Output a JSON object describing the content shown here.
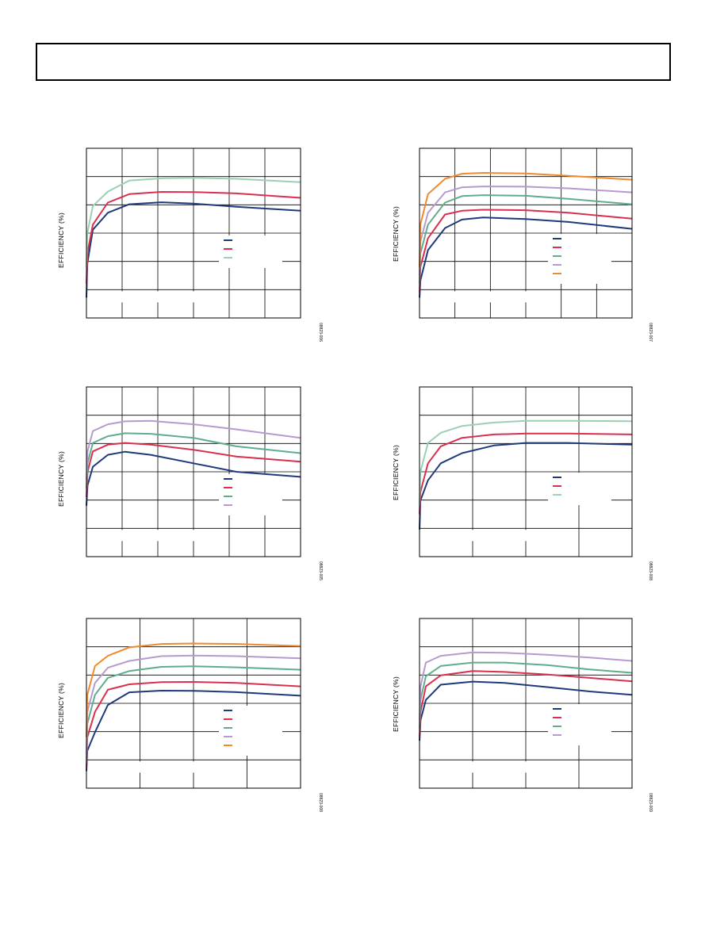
{
  "header": {
    "text": ""
  },
  "chart_data": [
    {
      "type": "line",
      "ylabel": "EFFICIENCY (%)",
      "figure_id": "08823-006",
      "x_divisions": 6,
      "y_divisions": 6,
      "series": [
        {
          "color": "#1f3a7a",
          "points": [
            [
              0,
              0.12
            ],
            [
              0.004,
              0.32
            ],
            [
              0.03,
              0.52
            ],
            [
              0.1,
              0.62
            ],
            [
              0.2,
              0.67
            ],
            [
              0.35,
              0.682
            ],
            [
              0.5,
              0.674
            ],
            [
              0.7,
              0.655
            ],
            [
              1,
              0.632
            ]
          ]
        },
        {
          "color": "#d9304e",
          "points": [
            [
              0,
              0.2
            ],
            [
              0.004,
              0.38
            ],
            [
              0.03,
              0.55
            ],
            [
              0.1,
              0.68
            ],
            [
              0.2,
              0.73
            ],
            [
              0.35,
              0.743
            ],
            [
              0.5,
              0.742
            ],
            [
              0.7,
              0.734
            ],
            [
              1,
              0.708
            ]
          ]
        },
        {
          "color": "#9bd0b4",
          "points": [
            [
              0,
              0.3
            ],
            [
              0.004,
              0.5
            ],
            [
              0.03,
              0.66
            ],
            [
              0.1,
              0.745
            ],
            [
              0.2,
              0.81
            ],
            [
              0.35,
              0.823
            ],
            [
              0.5,
              0.826
            ],
            [
              0.7,
              0.82
            ],
            [
              1,
              0.8
            ]
          ]
        }
      ]
    },
    {
      "type": "line",
      "ylabel": "EFFICIENCY (%)",
      "figure_id": "08823-007",
      "x_divisions": 6,
      "y_divisions": 6,
      "series": [
        {
          "color": "#1f3a7a",
          "points": [
            [
              0,
              0.12
            ],
            [
              0.004,
              0.22
            ],
            [
              0.04,
              0.4
            ],
            [
              0.12,
              0.53
            ],
            [
              0.2,
              0.58
            ],
            [
              0.3,
              0.592
            ],
            [
              0.5,
              0.583
            ],
            [
              0.7,
              0.566
            ],
            [
              1,
              0.525
            ]
          ]
        },
        {
          "color": "#d9304e",
          "points": [
            [
              0,
              0.15
            ],
            [
              0.004,
              0.3
            ],
            [
              0.04,
              0.47
            ],
            [
              0.12,
              0.61
            ],
            [
              0.2,
              0.632
            ],
            [
              0.3,
              0.638
            ],
            [
              0.5,
              0.635
            ],
            [
              0.7,
              0.62
            ],
            [
              1,
              0.585
            ]
          ]
        },
        {
          "color": "#5fad8a",
          "points": [
            [
              0,
              0.2
            ],
            [
              0.004,
              0.38
            ],
            [
              0.04,
              0.55
            ],
            [
              0.12,
              0.68
            ],
            [
              0.2,
              0.718
            ],
            [
              0.3,
              0.724
            ],
            [
              0.5,
              0.72
            ],
            [
              0.7,
              0.702
            ],
            [
              1,
              0.67
            ]
          ]
        },
        {
          "color": "#b79ad0",
          "points": [
            [
              0,
              0.25
            ],
            [
              0.004,
              0.45
            ],
            [
              0.04,
              0.62
            ],
            [
              0.12,
              0.74
            ],
            [
              0.2,
              0.77
            ],
            [
              0.3,
              0.775
            ],
            [
              0.5,
              0.774
            ],
            [
              0.7,
              0.764
            ],
            [
              1,
              0.74
            ]
          ]
        },
        {
          "color": "#f08a2c",
          "points": [
            [
              0,
              0.3
            ],
            [
              0.004,
              0.55
            ],
            [
              0.04,
              0.73
            ],
            [
              0.12,
              0.82
            ],
            [
              0.2,
              0.85
            ],
            [
              0.3,
              0.855
            ],
            [
              0.5,
              0.852
            ],
            [
              0.7,
              0.838
            ],
            [
              1,
              0.815
            ]
          ]
        }
      ]
    },
    {
      "type": "line",
      "ylabel": "EFFICIENCY (%)",
      "figure_id": "08823-005",
      "x_divisions": 6,
      "y_divisions": 6,
      "series": [
        {
          "color": "#1f3a7a",
          "points": [
            [
              0,
              0.3
            ],
            [
              0.005,
              0.42
            ],
            [
              0.03,
              0.53
            ],
            [
              0.1,
              0.6
            ],
            [
              0.18,
              0.618
            ],
            [
              0.3,
              0.6
            ],
            [
              0.5,
              0.55
            ],
            [
              0.7,
              0.5
            ],
            [
              1,
              0.47
            ]
          ]
        },
        {
          "color": "#d9304e",
          "points": [
            [
              0,
              0.35
            ],
            [
              0.005,
              0.5
            ],
            [
              0.03,
              0.62
            ],
            [
              0.1,
              0.66
            ],
            [
              0.18,
              0.67
            ],
            [
              0.3,
              0.66
            ],
            [
              0.5,
              0.63
            ],
            [
              0.7,
              0.59
            ],
            [
              1,
              0.56
            ]
          ]
        },
        {
          "color": "#5fad8a",
          "points": [
            [
              0,
              0.4
            ],
            [
              0.005,
              0.55
            ],
            [
              0.03,
              0.67
            ],
            [
              0.1,
              0.71
            ],
            [
              0.18,
              0.727
            ],
            [
              0.3,
              0.724
            ],
            [
              0.5,
              0.7
            ],
            [
              0.7,
              0.65
            ],
            [
              1,
              0.61
            ]
          ]
        },
        {
          "color": "#b79ad0",
          "points": [
            [
              0,
              0.45
            ],
            [
              0.005,
              0.62
            ],
            [
              0.03,
              0.74
            ],
            [
              0.1,
              0.78
            ],
            [
              0.18,
              0.797
            ],
            [
              0.3,
              0.8
            ],
            [
              0.5,
              0.78
            ],
            [
              0.7,
              0.75
            ],
            [
              1,
              0.7
            ]
          ]
        }
      ]
    },
    {
      "type": "line",
      "ylabel": "EFFICIENCY (%)",
      "figure_id": "08823-008",
      "x_divisions": 4,
      "y_divisions": 6,
      "series": [
        {
          "color": "#1f3a7a",
          "points": [
            [
              0,
              0.16
            ],
            [
              0.004,
              0.33
            ],
            [
              0.04,
              0.45
            ],
            [
              0.1,
              0.55
            ],
            [
              0.2,
              0.61
            ],
            [
              0.35,
              0.655
            ],
            [
              0.5,
              0.67
            ],
            [
              0.7,
              0.67
            ],
            [
              1,
              0.66
            ]
          ]
        },
        {
          "color": "#d9304e",
          "points": [
            [
              0,
              0.25
            ],
            [
              0.004,
              0.38
            ],
            [
              0.04,
              0.55
            ],
            [
              0.1,
              0.65
            ],
            [
              0.2,
              0.7
            ],
            [
              0.35,
              0.72
            ],
            [
              0.5,
              0.725
            ],
            [
              0.7,
              0.725
            ],
            [
              1,
              0.72
            ]
          ]
        },
        {
          "color": "#9bd0b4",
          "points": [
            [
              0,
              0.3
            ],
            [
              0.004,
              0.5
            ],
            [
              0.04,
              0.67
            ],
            [
              0.1,
              0.73
            ],
            [
              0.2,
              0.77
            ],
            [
              0.35,
              0.79
            ],
            [
              0.5,
              0.8
            ],
            [
              0.7,
              0.8
            ],
            [
              1,
              0.798
            ]
          ]
        }
      ]
    },
    {
      "type": "line",
      "ylabel": "EFFICIENCY (%)",
      "figure_id": "08823-008",
      "x_divisions": 4,
      "y_divisions": 6,
      "series": [
        {
          "color": "#1f3a7a",
          "points": [
            [
              0,
              0.1
            ],
            [
              0.004,
              0.22
            ],
            [
              0.04,
              0.33
            ],
            [
              0.1,
              0.49
            ],
            [
              0.2,
              0.565
            ],
            [
              0.35,
              0.575
            ],
            [
              0.5,
              0.574
            ],
            [
              0.7,
              0.566
            ],
            [
              1,
              0.545
            ]
          ]
        },
        {
          "color": "#d9304e",
          "points": [
            [
              0,
              0.12
            ],
            [
              0.004,
              0.3
            ],
            [
              0.04,
              0.45
            ],
            [
              0.1,
              0.58
            ],
            [
              0.2,
              0.612
            ],
            [
              0.35,
              0.625
            ],
            [
              0.5,
              0.626
            ],
            [
              0.7,
              0.62
            ],
            [
              1,
              0.6
            ]
          ]
        },
        {
          "color": "#5fad8a",
          "points": [
            [
              0,
              0.15
            ],
            [
              0.004,
              0.38
            ],
            [
              0.04,
              0.55
            ],
            [
              0.1,
              0.65
            ],
            [
              0.2,
              0.69
            ],
            [
              0.35,
              0.715
            ],
            [
              0.5,
              0.718
            ],
            [
              0.7,
              0.712
            ],
            [
              1,
              0.698
            ]
          ]
        },
        {
          "color": "#b79ad0",
          "points": [
            [
              0,
              0.2
            ],
            [
              0.004,
              0.45
            ],
            [
              0.04,
              0.62
            ],
            [
              0.1,
              0.71
            ],
            [
              0.2,
              0.75
            ],
            [
              0.35,
              0.778
            ],
            [
              0.5,
              0.782
            ],
            [
              0.7,
              0.778
            ],
            [
              1,
              0.765
            ]
          ]
        },
        {
          "color": "#f08a2c",
          "points": [
            [
              0,
              0.3
            ],
            [
              0.004,
              0.55
            ],
            [
              0.04,
              0.72
            ],
            [
              0.1,
              0.78
            ],
            [
              0.2,
              0.83
            ],
            [
              0.35,
              0.85
            ],
            [
              0.5,
              0.853
            ],
            [
              0.7,
              0.85
            ],
            [
              1,
              0.838
            ]
          ]
        }
      ]
    },
    {
      "type": "line",
      "ylabel": "EFFICIENCY (%)",
      "figure_id": "08823-009",
      "x_divisions": 4,
      "y_divisions": 6,
      "series": [
        {
          "color": "#1f3a7a",
          "points": [
            [
              0,
              0.28
            ],
            [
              0.005,
              0.4
            ],
            [
              0.03,
              0.52
            ],
            [
              0.1,
              0.61
            ],
            [
              0.25,
              0.628
            ],
            [
              0.4,
              0.62
            ],
            [
              0.6,
              0.596
            ],
            [
              0.8,
              0.57
            ],
            [
              1,
              0.55
            ]
          ]
        },
        {
          "color": "#d9304e",
          "points": [
            [
              0,
              0.3
            ],
            [
              0.005,
              0.45
            ],
            [
              0.03,
              0.6
            ],
            [
              0.1,
              0.665
            ],
            [
              0.25,
              0.69
            ],
            [
              0.4,
              0.685
            ],
            [
              0.6,
              0.67
            ],
            [
              0.8,
              0.65
            ],
            [
              1,
              0.63
            ]
          ]
        },
        {
          "color": "#5fad8a",
          "points": [
            [
              0,
              0.35
            ],
            [
              0.005,
              0.52
            ],
            [
              0.03,
              0.66
            ],
            [
              0.1,
              0.72
            ],
            [
              0.25,
              0.74
            ],
            [
              0.4,
              0.74
            ],
            [
              0.6,
              0.725
            ],
            [
              0.8,
              0.7
            ],
            [
              1,
              0.68
            ]
          ]
        },
        {
          "color": "#b79ad0",
          "points": [
            [
              0,
              0.4
            ],
            [
              0.005,
              0.6
            ],
            [
              0.03,
              0.74
            ],
            [
              0.1,
              0.78
            ],
            [
              0.25,
              0.8
            ],
            [
              0.4,
              0.798
            ],
            [
              0.6,
              0.786
            ],
            [
              0.8,
              0.77
            ],
            [
              1,
              0.75
            ]
          ]
        }
      ]
    }
  ]
}
